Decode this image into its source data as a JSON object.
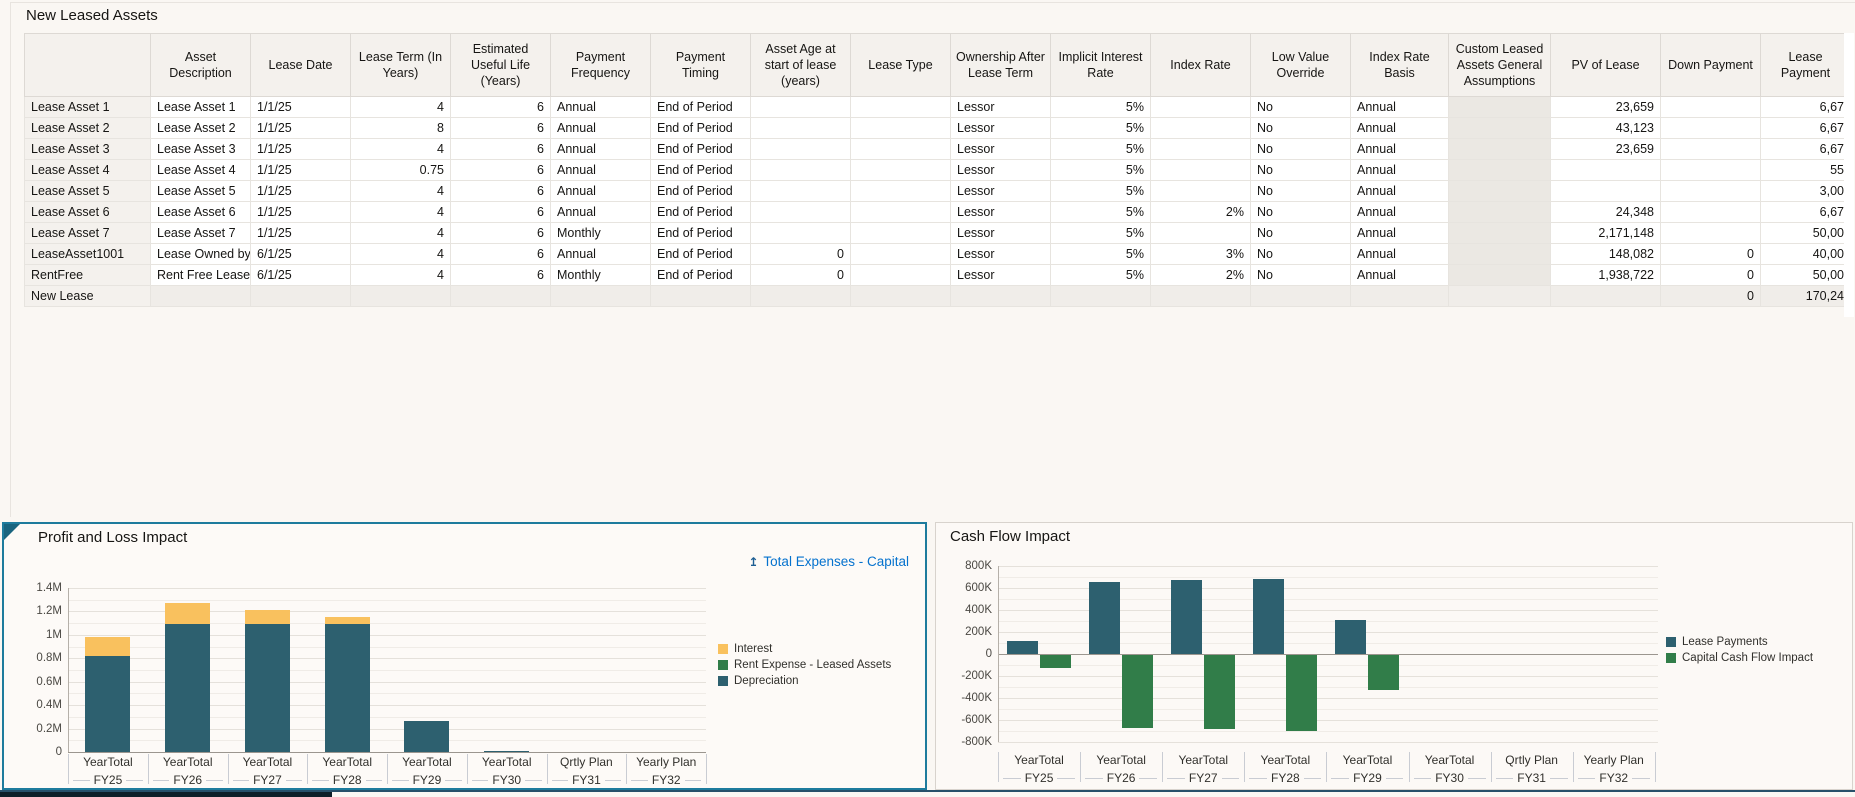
{
  "table": {
    "title": "New Leased Assets",
    "headers": [
      "",
      "Asset Description",
      "Lease Date",
      "Lease Term (In Years)",
      "Estimated Useful Life (Years)",
      "Payment Frequency",
      "Payment Timing",
      "Asset Age at start of lease (years)",
      "Lease Type",
      "Ownership After Lease Term",
      "Implicit Interest Rate",
      "Index Rate",
      "Low Value Override",
      "Index Rate Basis",
      "Custom Leased Assets General Assumptions",
      "PV of Lease",
      "Down Payment",
      "Lease Payment"
    ],
    "rows": [
      {
        "name": "Lease Asset 1",
        "cells": [
          "Lease Asset 1",
          "1/1/25",
          "4",
          "6",
          "Annual",
          "End of Period",
          "",
          "",
          "Lessor",
          "5%",
          "",
          "No",
          "Annual",
          "",
          "23,659",
          "",
          "6,67"
        ]
      },
      {
        "name": "Lease Asset 2",
        "cells": [
          "Lease Asset 2",
          "1/1/25",
          "8",
          "6",
          "Annual",
          "End of Period",
          "",
          "",
          "Lessor",
          "5%",
          "",
          "No",
          "Annual",
          "",
          "43,123",
          "",
          "6,67"
        ]
      },
      {
        "name": "Lease Asset 3",
        "cells": [
          "Lease Asset 3",
          "1/1/25",
          "4",
          "6",
          "Annual",
          "End of Period",
          "",
          "",
          "Lessor",
          "5%",
          "",
          "No",
          "Annual",
          "",
          "23,659",
          "",
          "6,67"
        ]
      },
      {
        "name": "Lease Asset 4",
        "cells": [
          "Lease Asset 4",
          "1/1/25",
          "0.75",
          "6",
          "Annual",
          "End of Period",
          "",
          "",
          "Lessor",
          "5%",
          "",
          "No",
          "Annual",
          "",
          "",
          "",
          "55"
        ]
      },
      {
        "name": "Lease Asset 5",
        "cells": [
          "Lease Asset 5",
          "1/1/25",
          "4",
          "6",
          "Annual",
          "End of Period",
          "",
          "",
          "Lessor",
          "5%",
          "",
          "No",
          "Annual",
          "",
          "",
          "",
          "3,00"
        ]
      },
      {
        "name": "Lease Asset 6",
        "cells": [
          "Lease Asset 6",
          "1/1/25",
          "4",
          "6",
          "Annual",
          "End of Period",
          "",
          "",
          "Lessor",
          "5%",
          "2%",
          "No",
          "Annual",
          "",
          "24,348",
          "",
          "6,67"
        ]
      },
      {
        "name": "Lease Asset 7",
        "cells": [
          "Lease Asset 7",
          "1/1/25",
          "4",
          "6",
          "Monthly",
          "End of Period",
          "",
          "",
          "Lessor",
          "5%",
          "",
          "No",
          "Annual",
          "",
          "2,171,148",
          "",
          "50,00"
        ]
      },
      {
        "name": "LeaseAsset1001",
        "cells": [
          "Lease Owned by",
          "6/1/25",
          "4",
          "6",
          "Annual",
          "End of Period",
          "0",
          "",
          "Lessor",
          "5%",
          "3%",
          "No",
          "Annual",
          "",
          "148,082",
          "0",
          "40,00"
        ]
      },
      {
        "name": "RentFree",
        "cells": [
          "Rent Free Lease",
          "6/1/25",
          "4",
          "6",
          "Monthly",
          "End of Period",
          "0",
          "",
          "Lessor",
          "5%",
          "2%",
          "No",
          "Annual",
          "",
          "1,938,722",
          "0",
          "50,00"
        ]
      },
      {
        "name": "New Lease",
        "cells": [
          "",
          "",
          "",
          "",
          "",
          "",
          "",
          "",
          "",
          "",
          "",
          "",
          "",
          "",
          "",
          "0",
          "170,24"
        ]
      }
    ]
  },
  "chart_data": [
    {
      "type": "bar",
      "stacked": true,
      "title": "Profit and Loss Impact",
      "link_label": "Total Expenses - Capital",
      "categories": [
        {
          "period": "YearTotal",
          "year": "FY25"
        },
        {
          "period": "YearTotal",
          "year": "FY26"
        },
        {
          "period": "YearTotal",
          "year": "FY27"
        },
        {
          "period": "YearTotal",
          "year": "FY28"
        },
        {
          "period": "YearTotal",
          "year": "FY29"
        },
        {
          "period": "YearTotal",
          "year": "FY30"
        },
        {
          "period": "Qrtly Plan",
          "year": "FY31"
        },
        {
          "period": "Yearly Plan",
          "year": "FY32"
        }
      ],
      "series": [
        {
          "name": "Interest",
          "color": "#f9c15e",
          "values": [
            160000,
            180000,
            120000,
            60000,
            0,
            0,
            0,
            0
          ]
        },
        {
          "name": "Rent Expense - Leased Assets",
          "color": "#317d49",
          "values": [
            0,
            0,
            0,
            0,
            0,
            0,
            0,
            0
          ]
        },
        {
          "name": "Depreciation",
          "color": "#2d606f",
          "values": [
            820000,
            1090000,
            1090000,
            1090000,
            265000,
            10000,
            0,
            0
          ]
        }
      ],
      "ylim": [
        0,
        1400000
      ],
      "yticks": [
        "0",
        "0.2M",
        "0.4M",
        "0.6M",
        "0.8M",
        "1M",
        "1.2M",
        "1.4M"
      ],
      "legend_position": "right",
      "grid": true
    },
    {
      "type": "bar",
      "stacked": false,
      "title": "Cash Flow Impact",
      "categories": [
        {
          "period": "YearTotal",
          "year": "FY25"
        },
        {
          "period": "YearTotal",
          "year": "FY26"
        },
        {
          "period": "YearTotal",
          "year": "FY27"
        },
        {
          "period": "YearTotal",
          "year": "FY28"
        },
        {
          "period": "YearTotal",
          "year": "FY29"
        },
        {
          "period": "YearTotal",
          "year": "FY30"
        },
        {
          "period": "Qrtly Plan",
          "year": "FY31"
        },
        {
          "period": "Yearly Plan",
          "year": "FY32"
        }
      ],
      "series": [
        {
          "name": "Lease Payments",
          "color": "#2d606f",
          "values": [
            120000,
            655000,
            670000,
            685000,
            310000,
            0,
            0,
            0
          ]
        },
        {
          "name": "Capital Cash Flow Impact",
          "color": "#317d49",
          "values": [
            -115000,
            -660000,
            -675000,
            -690000,
            -315000,
            0,
            0,
            0
          ]
        }
      ],
      "ylim": [
        -800000,
        800000
      ],
      "yticks": [
        "-800K",
        "-600K",
        "-400K",
        "-200K",
        "0",
        "200K",
        "400K",
        "600K",
        "800K"
      ],
      "legend_position": "right",
      "grid": true
    }
  ]
}
